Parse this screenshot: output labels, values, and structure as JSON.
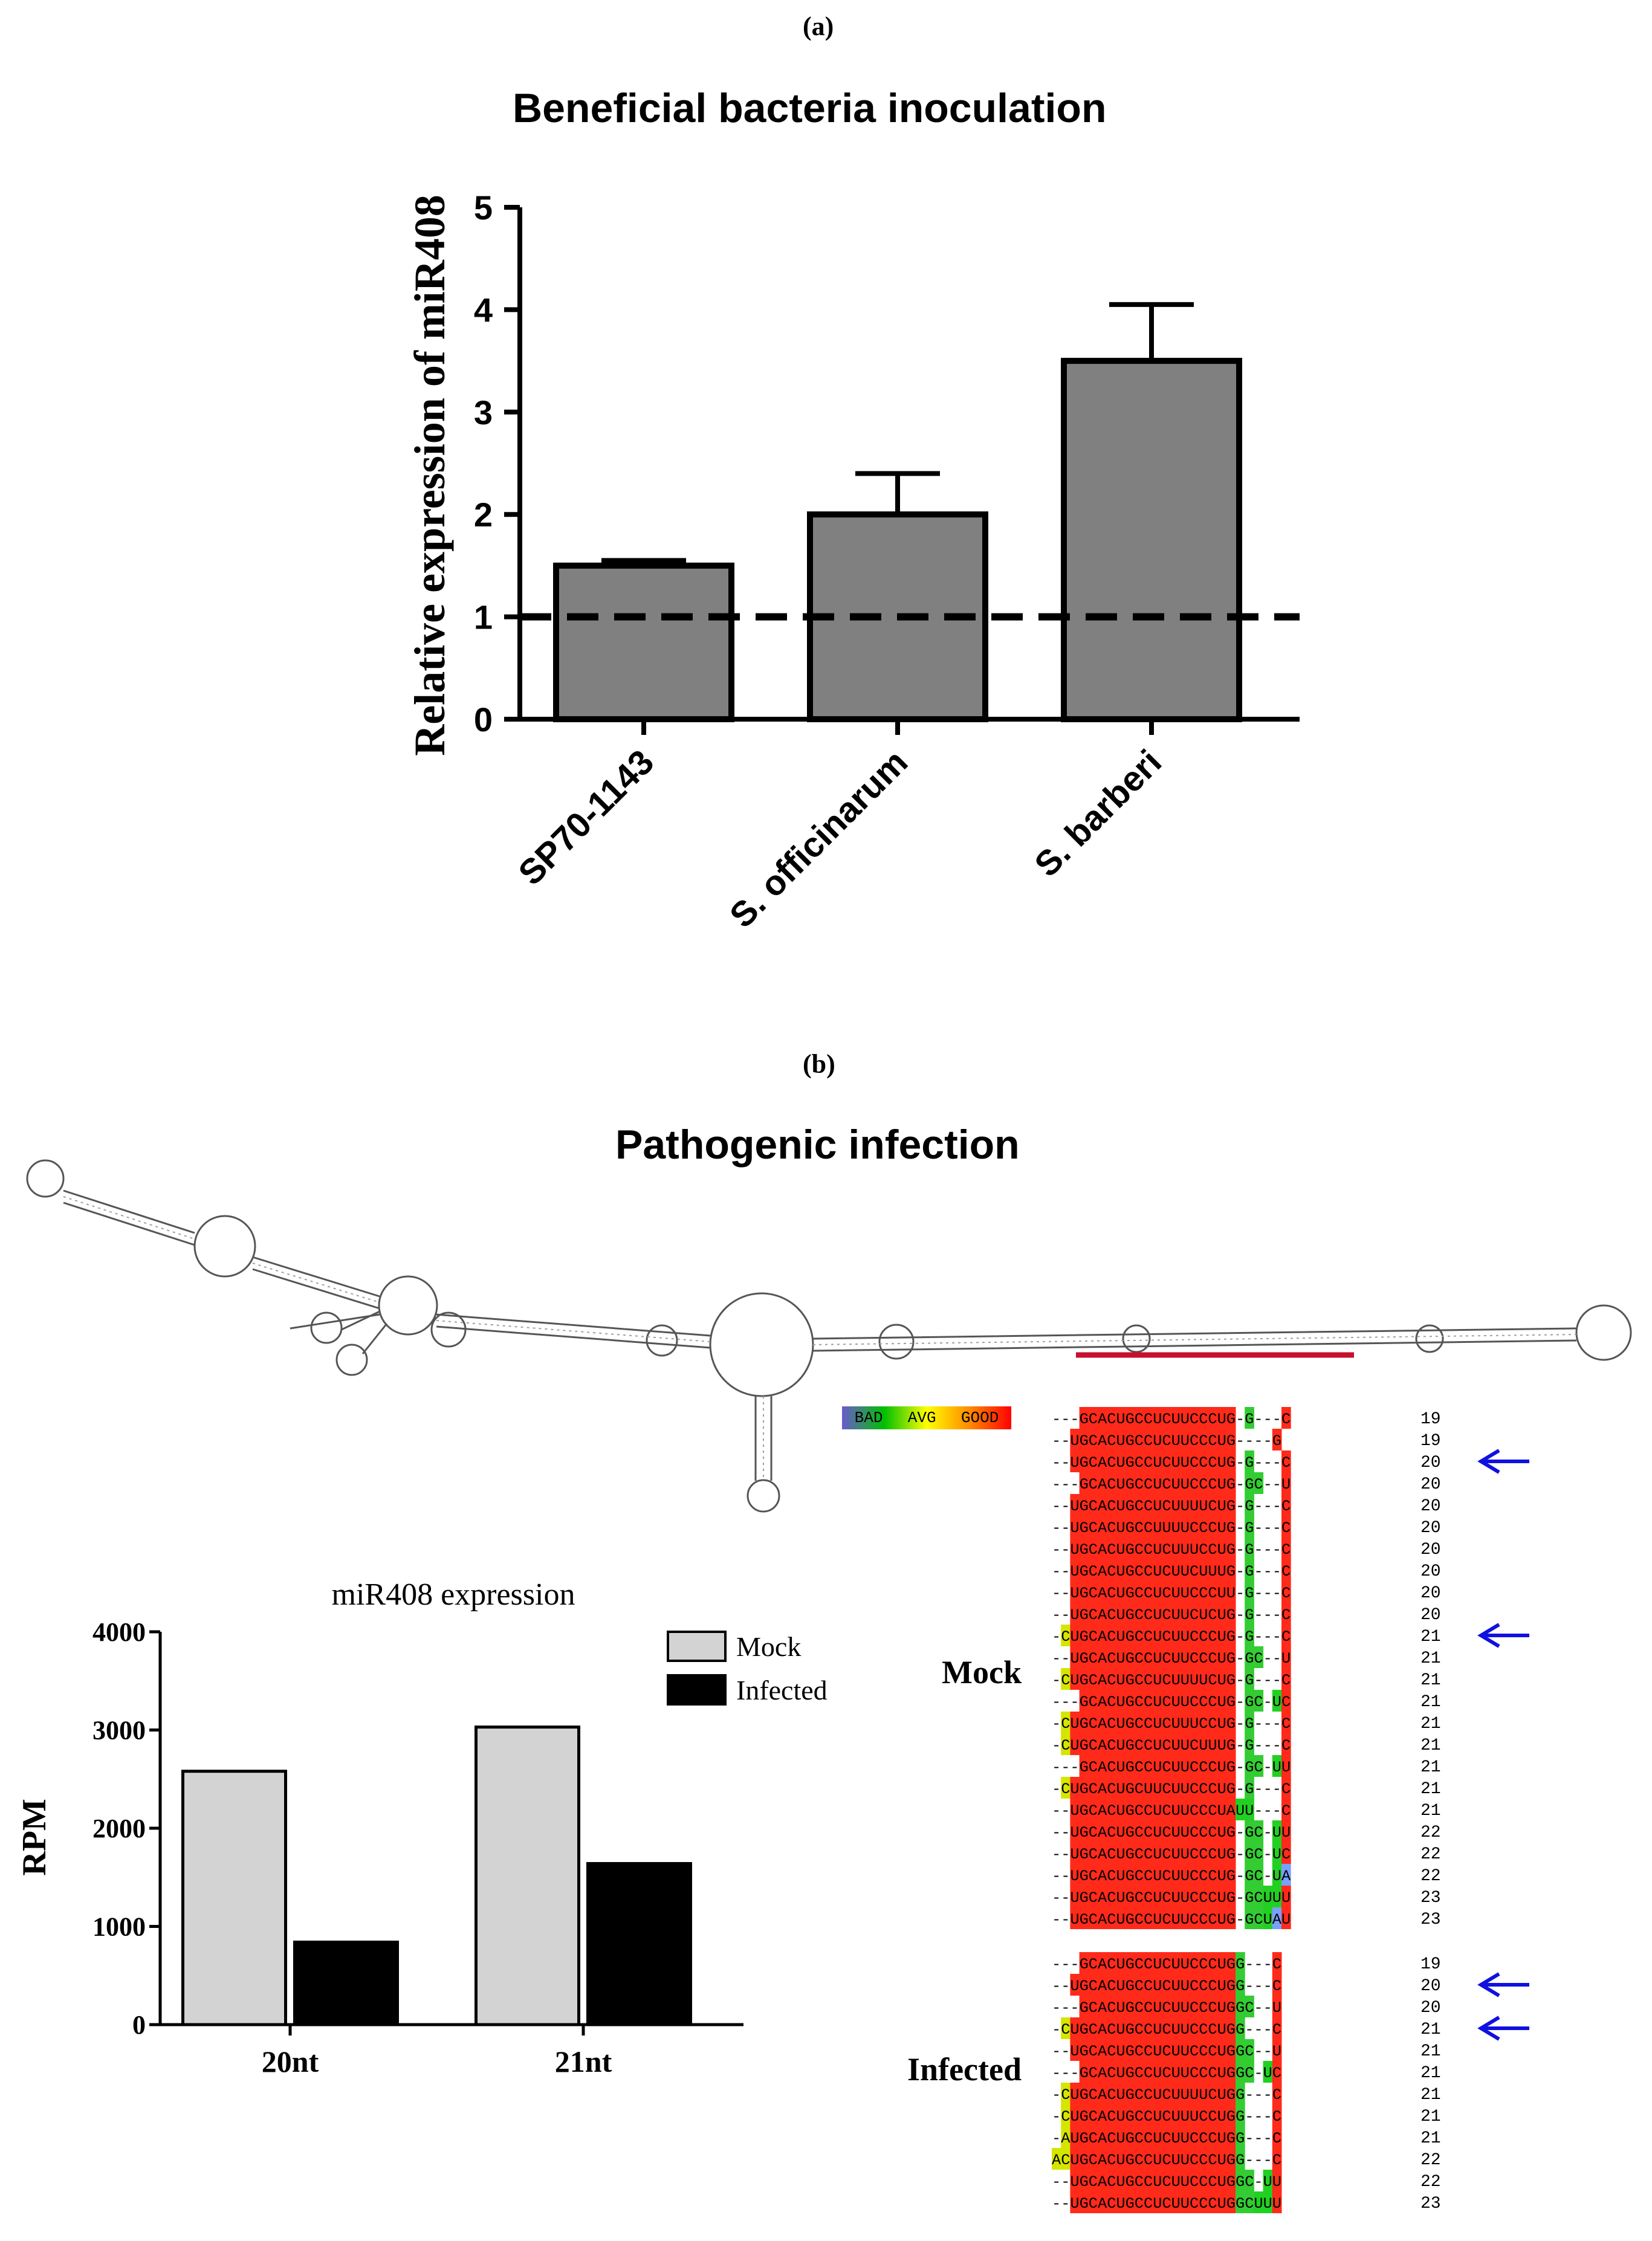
{
  "panel_a_label": "(a)",
  "panel_b_label": "(b)",
  "chart_data": [
    {
      "type": "bar",
      "title": "Beneficial bacteria inoculation",
      "xlabel": "",
      "ylabel": "Relative expression of miR408",
      "ylim": [
        0,
        5
      ],
      "yticks": [
        0,
        1,
        2,
        3,
        4,
        5
      ],
      "categories": [
        "SP70-1143",
        "S. officinarum",
        "S. barberi"
      ],
      "values": [
        1.5,
        2.0,
        3.5
      ],
      "errors": [
        0.05,
        0.4,
        0.55
      ],
      "reference_line": 1,
      "bar_color": "#808080"
    },
    {
      "type": "bar",
      "title": "miR408 expression",
      "xlabel": "",
      "ylabel": "RPM",
      "ylim": [
        0,
        4000
      ],
      "yticks": [
        0,
        1000,
        2000,
        3000,
        4000
      ],
      "categories": [
        "20nt",
        "21nt"
      ],
      "series": [
        {
          "name": "Mock",
          "values": [
            2580,
            3030
          ],
          "color": "#d3d3d3"
        },
        {
          "name": "Infected",
          "values": [
            840,
            1640
          ],
          "color": "#000000"
        }
      ],
      "legend": "top-right"
    }
  ],
  "panel_b": {
    "title": "Pathogenic infection",
    "quality_legend": [
      "BAD",
      "AVG",
      "GOOD"
    ],
    "mock_label": "Mock",
    "infected_label": "Infected",
    "mock_rows": [
      {
        "seq": "---GCACUGCCUCUUCCCUG-G---C",
        "len": "19"
      },
      {
        "seq": "--UGCACUGCCUCUUCCCUG----G",
        "len": "19",
        "arrow": false
      },
      {
        "seq": "--UGCACUGCCUCUUCCCUG-G---C",
        "len": "20",
        "arrow": true
      },
      {
        "seq": "---GCACUGCCUCUUCCCUG-GC--U",
        "len": "20"
      },
      {
        "seq": "--UGCACUGCCUCUUUUCUG-G---C",
        "len": "20"
      },
      {
        "seq": "--UGCACUGCCUUUUCCCUG-G---C",
        "len": "20"
      },
      {
        "seq": "--UGCACUGCCUCUUUCCUG-G---C",
        "len": "20"
      },
      {
        "seq": "--UGCACUGCCUCUUCUUUG-G---C",
        "len": "20"
      },
      {
        "seq": "--UGCACUGCCUCUUCCCUU-G---C",
        "len": "20"
      },
      {
        "seq": "--UGCACUGCCUCUUCUCUG-G---C",
        "len": "20"
      },
      {
        "seq": "-CUGCACUGCCUCUUCCCUG-G---C",
        "len": "21",
        "arrow": true
      },
      {
        "seq": "--UGCACUGCCUCUUCCCUG-GC--U",
        "len": "21"
      },
      {
        "seq": "-CUGCACUGCCUCUUUUCUG-G---C",
        "len": "21"
      },
      {
        "seq": "---GCACUGCCUCUUCCCUG-GC-UC",
        "len": "21"
      },
      {
        "seq": "-CUGCACUGCCUCUUUCCUG-G---C",
        "len": "21"
      },
      {
        "seq": "-CUGCACUGCCUCUUCUUUG-G---C",
        "len": "21"
      },
      {
        "seq": "---GCACUGCCUCUUCCCUG-GC-UU",
        "len": "21"
      },
      {
        "seq": "-CUGCACUGCUUCUUCCCUG-G---C",
        "len": "21"
      },
      {
        "seq": "--UGCACUGCCUCUUCCCUAUU---C",
        "len": "21"
      },
      {
        "seq": "--UGCACUGCCUCUUCCCUG-GC-UU",
        "len": "22"
      },
      {
        "seq": "--UGCACUGCCUCUUCCCUG-GC-UC",
        "len": "22"
      },
      {
        "seq": "--UGCACUGCCUCUUCCCUG-GC-UA",
        "len": "22"
      },
      {
        "seq": "--UGCACUGCCUCUUCCCUG-GCUUU",
        "len": "23"
      },
      {
        "seq": "--UGCACUGCCUCUUCCCUG-GCUAU",
        "len": "23"
      }
    ],
    "infected_rows": [
      {
        "seq": "---GCACUGCCUCUUCCCUGG---C",
        "len": "19"
      },
      {
        "seq": "--UGCACUGCCUCUUCCCUGG---C",
        "len": "20",
        "arrow": true
      },
      {
        "seq": "---GCACUGCCUCUUCCCUGGC--U",
        "len": "20"
      },
      {
        "seq": "-CUGCACUGCCUCUUCCCUGG---C",
        "len": "21",
        "arrow": true
      },
      {
        "seq": "--UGCACUGCCUCUUCCCUGGC--U",
        "len": "21"
      },
      {
        "seq": "---GCACUGCCUCUUCCCUGGC-UC",
        "len": "21"
      },
      {
        "seq": "-CUGCACUGCCUCUUUUCUGG---C",
        "len": "21"
      },
      {
        "seq": "-CUGCACUGCCUCUUUCCUGG---C",
        "len": "21"
      },
      {
        "seq": "-AUGCACUGCCUCUUCCCUGG---C",
        "len": "21"
      },
      {
        "seq": "ACUGCACUGCCUCUUCCCUGG---C",
        "len": "22"
      },
      {
        "seq": "--UGCACUGCCUCUUCCCUGGC-UU",
        "len": "22"
      },
      {
        "seq": "--UGCACUGCCUCUUCCCUGGCUUU",
        "len": "23"
      }
    ]
  }
}
